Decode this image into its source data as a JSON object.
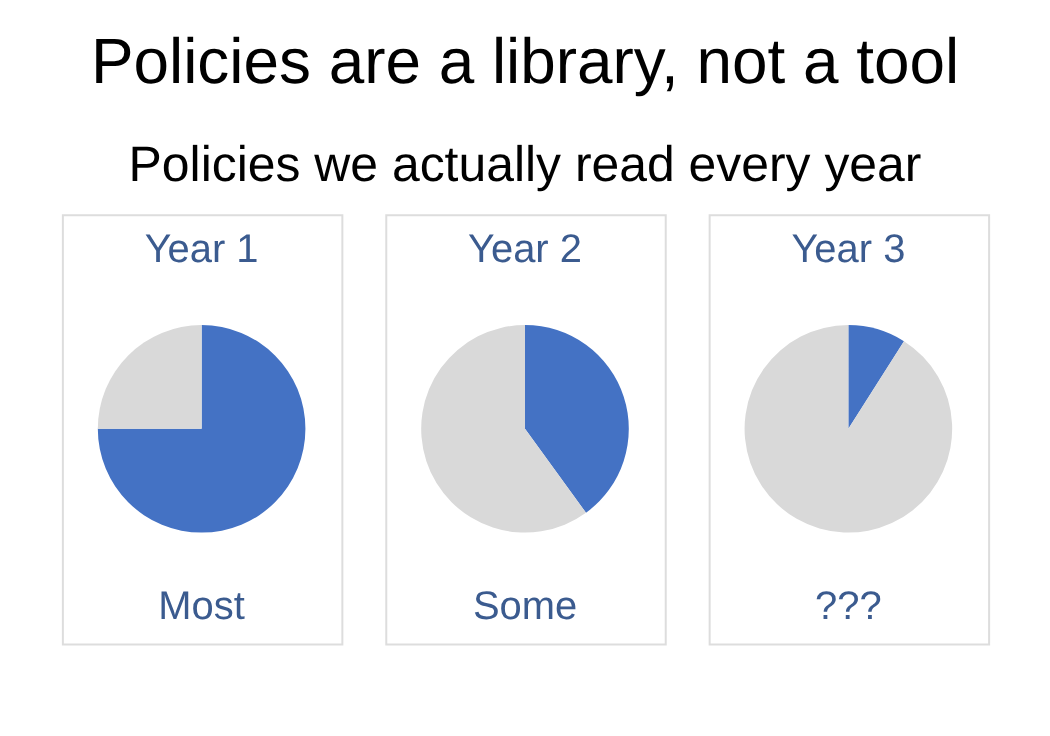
{
  "chart_data": [
    {
      "type": "pie",
      "title": "Policies are a library, not a tool",
      "subtitle": "Policies we actually read every year",
      "annotations": [
        "Year 1",
        "Most"
      ],
      "categories": [
        null,
        null
      ],
      "values": [
        75,
        25
      ],
      "colors": [
        "#4472c4",
        "#d9d9d9"
      ]
    },
    {
      "type": "pie",
      "annotations": [
        "Year 2",
        "Some"
      ],
      "categories": [
        null,
        null
      ],
      "values": [
        40,
        60
      ],
      "colors": [
        "#4472c4",
        "#d9d9d9"
      ]
    },
    {
      "type": "pie",
      "annotations": [
        "Year 3",
        "???"
      ],
      "categories": [
        null,
        null
      ],
      "values": [
        9,
        91
      ],
      "colors": [
        "#4472c4",
        "#d9d9d9"
      ]
    }
  ]
}
